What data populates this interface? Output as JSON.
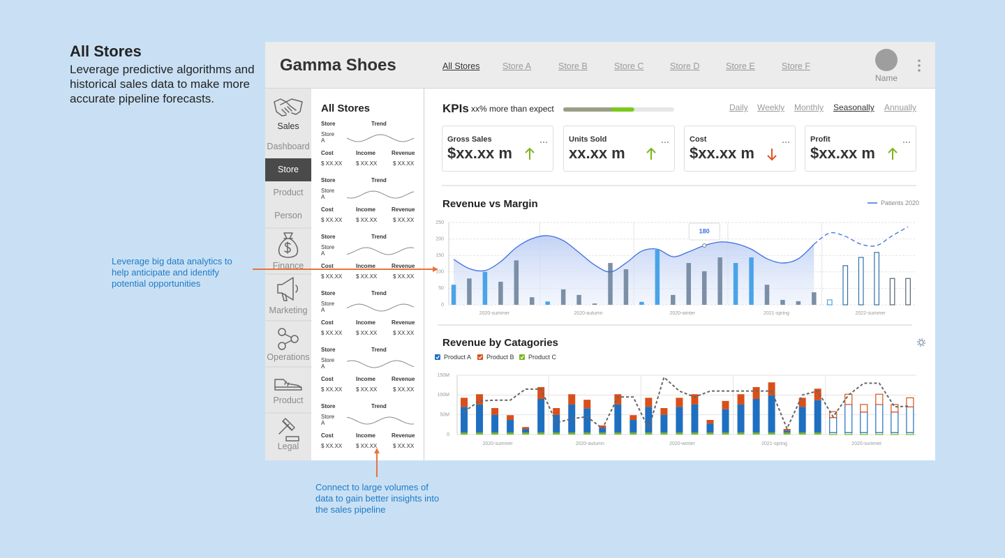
{
  "intro": {
    "title": "All Stores",
    "description": "Leverage predictive algorithms and historical sales data to make more accurate pipeline forecasts."
  },
  "callouts": [
    {
      "text": "Leverage big data analytics to help anticipate and identify potential opportunities"
    },
    {
      "text": "Connect to large volumes of data to gain better insights into the sales pipeline"
    }
  ],
  "header": {
    "brand": "Gamma Shoes",
    "tabs": [
      "All Stores",
      "Store A",
      "Store B",
      "Store C",
      "Store D",
      "Store E",
      "Store F"
    ],
    "active_tab": 0,
    "user": "Name"
  },
  "sidebar": {
    "items": [
      "Sales",
      "Dashboard",
      "Store",
      "Product",
      "Person",
      "Finance",
      "Marketing",
      "Operations",
      "Product",
      "Legal"
    ],
    "active": 2
  },
  "store_list": {
    "title": "All Stores",
    "cards": [
      {
        "store_heading": "Store",
        "trend_heading": "Trend",
        "store": "Store A",
        "cost_heading": "Cost",
        "income_heading": "Income",
        "revenue_heading": "Revenue",
        "cost": "$ XX.XX",
        "income": "$ XX.XX",
        "revenue": "$ XX.XX"
      },
      {
        "store_heading": "Store",
        "trend_heading": "Trend",
        "store": "Store A",
        "cost_heading": "Cost",
        "income_heading": "Income",
        "revenue_heading": "Revenue",
        "cost": "$ XX.XX",
        "income": "$ XX.XX",
        "revenue": "$ XX.XX"
      },
      {
        "store_heading": "Store",
        "trend_heading": "Trend",
        "store": "Store A",
        "cost_heading": "Cost",
        "income_heading": "Income",
        "revenue_heading": "Revenue",
        "cost": "$ XX.XX",
        "income": "$ XX.XX",
        "revenue": "$ XX.XX"
      },
      {
        "store_heading": "Store",
        "trend_heading": "Trend",
        "store": "Store A",
        "cost_heading": "Cost",
        "income_heading": "Income",
        "revenue_heading": "Revenue",
        "cost": "$ XX.XX",
        "income": "$ XX.XX",
        "revenue": "$ XX.XX"
      },
      {
        "store_heading": "Store",
        "trend_heading": "Trend",
        "store": "Store A",
        "cost_heading": "Cost",
        "income_heading": "Income",
        "revenue_heading": "Revenue",
        "cost": "$ XX.XX",
        "income": "$ XX.XX",
        "revenue": "$ XX.XX"
      },
      {
        "store_heading": "Store",
        "trend_heading": "Trend",
        "store": "Store A",
        "cost_heading": "Cost",
        "income_heading": "Income",
        "revenue_heading": "Revenue",
        "cost": "$ XX.XX",
        "income": "$ XX.XX",
        "revenue": "$ XX.XX"
      }
    ]
  },
  "kpis": {
    "title": "KPIs",
    "subtitle": "xx% more than expect",
    "progress_baseline": 44,
    "progress": 64,
    "periods": [
      "Daily",
      "Weekly",
      "Monthly",
      "Seasonally",
      "Annually"
    ],
    "active_period": 3,
    "cards": [
      {
        "label": "Gross Sales",
        "value": "$xx.xx m",
        "trend": "up"
      },
      {
        "label": "Units Sold",
        "value": "xx.xx m",
        "trend": "up"
      },
      {
        "label": "Cost",
        "value": "$xx.xx m",
        "trend": "down"
      },
      {
        "label": "Profit",
        "value": "$xx.xx m",
        "trend": "up"
      }
    ]
  },
  "revenue_vs_margin": {
    "type": "bar_line",
    "title": "Revenue vs Margin",
    "categories": [
      null,
      null,
      null,
      "2020-summer",
      null,
      null,
      null,
      null,
      null,
      "2020-autumn",
      null,
      null,
      null,
      null,
      null,
      "2020-winter",
      null,
      null,
      null,
      null,
      null,
      "2021-spring",
      null,
      null,
      null,
      null,
      null,
      "2022-summer",
      null,
      null
    ],
    "bars": {
      "values": [
        61,
        80,
        100,
        70,
        135,
        23,
        10,
        47,
        30,
        4,
        127,
        108,
        9,
        167,
        30,
        127,
        102,
        144,
        127,
        144,
        61,
        15,
        11,
        38,
        15,
        119,
        144,
        159,
        80,
        80
      ],
      "colors": [
        "#4aa3e8",
        "#7b8fa6",
        "#4aa3e8",
        "#7b8fa6",
        "#7b8fa6",
        "#7b8fa6",
        "#4aa3e8",
        "#7b8fa6",
        "#7b8fa6",
        "#7b8fa6",
        "#7b8fa6",
        "#7b8fa6",
        "#4aa3e8",
        "#4aa3e8",
        "#7b8fa6",
        "#7b8fa6",
        "#7b8fa6",
        "#7b8fa6",
        "#4aa3e8",
        "#4aa3e8",
        "#7b8fa6",
        "#7b8fa6",
        "#7b8fa6",
        "#7b8fa6",
        "#4aa3e8",
        "#2f6fa8",
        "#2f6fa8",
        "#2f6fa8",
        "#546070",
        "#546070"
      ]
    },
    "line": {
      "name": "Patients 2020",
      "color": "#3b6fe0",
      "values": [
        138,
        110,
        104,
        131,
        174,
        201,
        210,
        195,
        159,
        121,
        100,
        127,
        163,
        169,
        146,
        161,
        180,
        191,
        186,
        169,
        140,
        127,
        140,
        184,
        218,
        208,
        184,
        180,
        210,
        237
      ]
    },
    "forecast_start": 24,
    "tooltip_index": 16,
    "ylim": [
      0,
      250
    ],
    "yticks": [
      0,
      50,
      100,
      150,
      200,
      250
    ],
    "grid": true
  },
  "revenue_by_categories": {
    "type": "stacked_bar_line",
    "title": "Revenue by Catagories",
    "categories": [
      null,
      null,
      "2020-summer",
      null,
      null,
      null,
      null,
      null,
      "2020-autumn",
      null,
      null,
      null,
      null,
      null,
      "2020-winter",
      null,
      null,
      null,
      null,
      null,
      "2021-spring",
      null,
      null,
      null,
      null,
      null,
      "2020-summer",
      null,
      null,
      null
    ],
    "series": [
      {
        "name": "Product C",
        "color": "#7ab51d",
        "values": [
          5000000.0,
          5000000.0,
          5000000.0,
          5000000.0,
          5000000.0,
          5000000.0,
          5000000.0,
          5000000.0,
          5000000.0,
          5000000.0,
          5000000.0,
          5000000.0,
          5000000.0,
          5000000.0,
          5000000.0,
          5000000.0,
          5000000.0,
          5000000.0,
          5000000.0,
          5000000.0,
          5000000.0,
          5000000.0,
          5000000.0,
          5000000.0,
          5000000.0,
          5000000.0,
          5000000.0,
          5000000.0,
          5000000.0,
          5000000.0
        ]
      },
      {
        "name": "Product A",
        "color": "#1f6fc0",
        "values": [
          65000000.0,
          71000000.0,
          45000000.0,
          32000000.0,
          9000000.0,
          85000000.0,
          45000000.0,
          71000000.0,
          61000000.0,
          12000000.0,
          71000000.0,
          32000000.0,
          65000000.0,
          45000000.0,
          65000000.0,
          71000000.0,
          23000000.0,
          59000000.0,
          71000000.0,
          85000000.0,
          94000000.0,
          5000000.0,
          65000000.0,
          82000000.0,
          38000000.0,
          71000000.0,
          52000000.0,
          71000000.0,
          52000000.0,
          65000000.0
        ]
      },
      {
        "name": "Product B",
        "color": "#d94f1a",
        "values": [
          23000000.0,
          26000000.0,
          17000000.0,
          12000000.0,
          5000000.0,
          30000000.0,
          17000000.0,
          26000000.0,
          22000000.0,
          6000000.0,
          26000000.0,
          12000000.0,
          23000000.0,
          17000000.0,
          23000000.0,
          26000000.0,
          9000000.0,
          21000000.0,
          26000000.0,
          30000000.0,
          33000000.0,
          4000000.0,
          23000000.0,
          29000000.0,
          15000000.0,
          26000000.0,
          19000000.0,
          26000000.0,
          19000000.0,
          23000000.0
        ]
      }
    ],
    "legend_order": [
      1,
      2,
      0
    ],
    "line": {
      "color": "#666666",
      "values": [
        58000000.0,
        85000000.0,
        87000000.0,
        87000000.0,
        115000000.0,
        115000000.0,
        30000000.0,
        40000000.0,
        45000000.0,
        15000000.0,
        95000000.0,
        95000000.0,
        15000000.0,
        145000000.0,
        110000000.0,
        95000000.0,
        110000000.0,
        110000000.0,
        110000000.0,
        110000000.0,
        110000000.0,
        15000000.0,
        100000000.0,
        110000000.0,
        45000000.0,
        100000000.0,
        130000000.0,
        130000000.0,
        70000000.0,
        72000000.0
      ]
    },
    "forecast_start": 24,
    "ylim": [
      0,
      150000000.0
    ],
    "yticks": [
      0,
      {
        "value": 50000000.0,
        "label": "50M"
      },
      {
        "value": 100000000.0,
        "label": "100M"
      },
      {
        "value": 150000000.0,
        "label": "150M"
      }
    ],
    "grid": true
  }
}
